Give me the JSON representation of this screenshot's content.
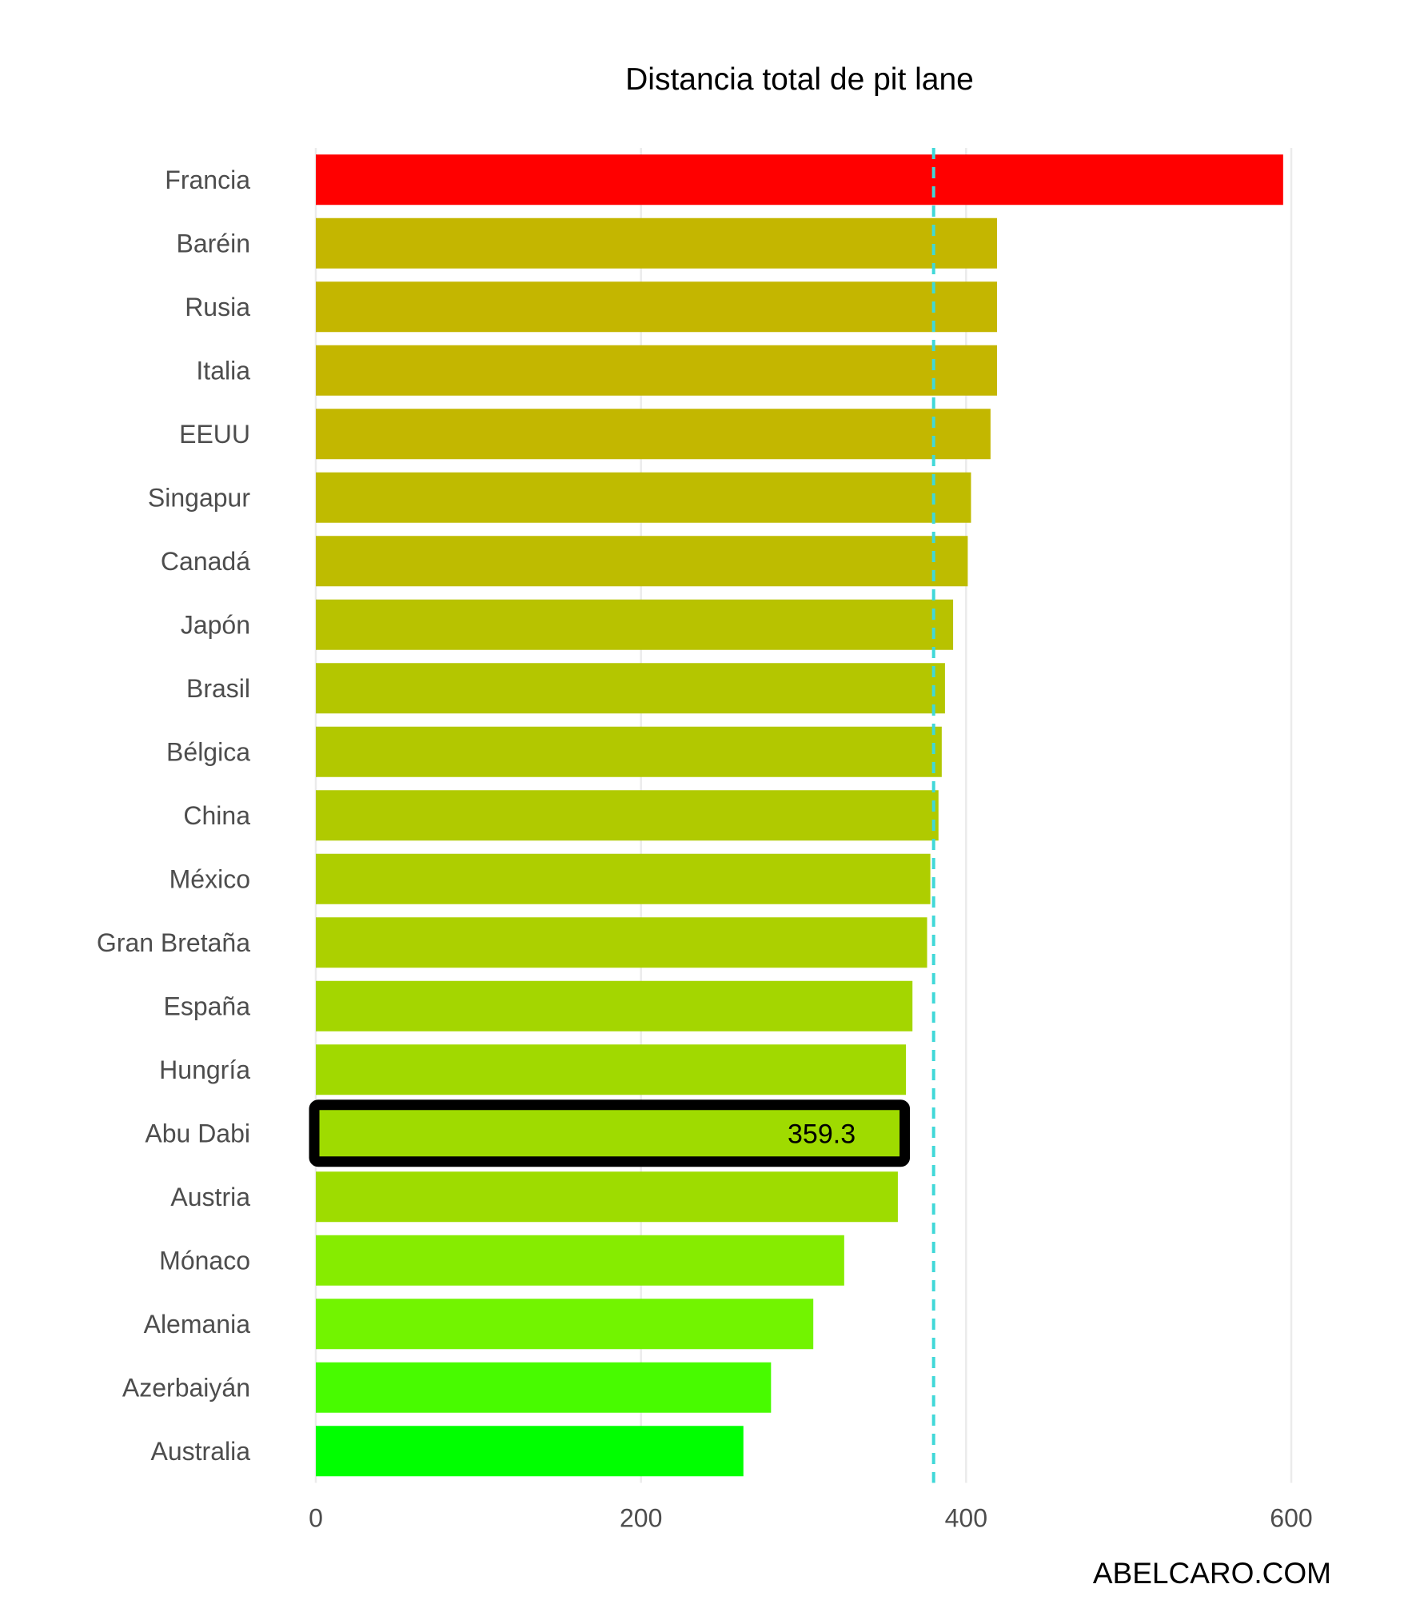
{
  "chart_data": {
    "type": "bar",
    "orientation": "horizontal",
    "title": "Distancia total de pit lane",
    "caption": "ABELCARO.COM",
    "categories": [
      "Francia",
      "Baréin",
      "Rusia",
      "Italia",
      "EEUU",
      "Singapur",
      "Canadá",
      "Japón",
      "Brasil",
      "Bélgica",
      "China",
      "México",
      "Gran Bretaña",
      "España",
      "Hungría",
      "Abu Dabi",
      "Austria",
      "Mónaco",
      "Alemania",
      "Azerbaiyán",
      "Australia"
    ],
    "values": [
      595,
      419,
      419,
      419,
      415,
      403,
      401,
      392,
      387,
      385,
      383,
      378,
      376,
      367,
      363,
      359.3,
      358,
      325,
      306,
      280,
      263
    ],
    "colors": [
      "#ff0000",
      "#c4b600",
      "#c4b600",
      "#c4b600",
      "#c3b700",
      "#bfbb00",
      "#bebc00",
      "#b8c200",
      "#b4c600",
      "#b2c800",
      "#b0ca00",
      "#aece00",
      "#acd000",
      "#a4d600",
      "#a1d900",
      "#9fdb00",
      "#9edc00",
      "#86ec00",
      "#72f400",
      "#48fb00",
      "#00ff00"
    ],
    "highlight": {
      "category": "Abu Dabi",
      "label": "359.3",
      "outline_color": "#000000"
    },
    "reference_line": {
      "value": 380,
      "style": "dashed",
      "color": "#40d8d8"
    },
    "xlim": [
      0,
      600
    ],
    "xticks": [
      0,
      200,
      400,
      600
    ],
    "xlabel": "",
    "ylabel": "",
    "grid": true
  }
}
